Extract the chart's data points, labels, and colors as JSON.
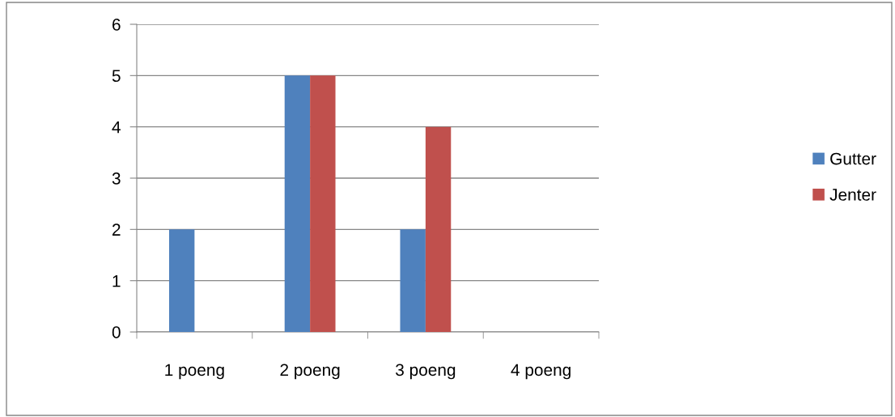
{
  "chart_data": {
    "type": "bar",
    "categories": [
      "1 poeng",
      "2 poeng",
      "3 poeng",
      "4 poeng"
    ],
    "series": [
      {
        "name": "Gutter",
        "color": "#4f81bd",
        "values": [
          2,
          5,
          2,
          0
        ]
      },
      {
        "name": "Jenter",
        "color": "#c0504d",
        "values": [
          0,
          5,
          4,
          0
        ]
      }
    ],
    "ylim": [
      0,
      6
    ],
    "yticks": [
      0,
      1,
      2,
      3,
      4,
      5,
      6
    ],
    "grid": "y",
    "legend": "right"
  }
}
